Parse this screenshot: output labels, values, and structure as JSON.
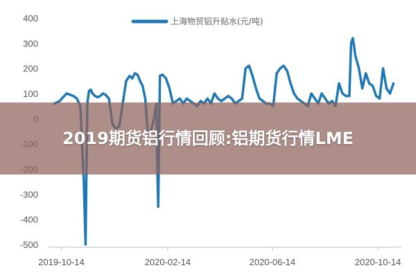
{
  "banner": {
    "title": "2019期货铝行情回顾:铝期货行情LME"
  },
  "colors": {
    "series": "#1f77b4",
    "axis": "#bfbfbf",
    "banner_bg": "#8e635c"
  },
  "chart_data": {
    "type": "line",
    "title": "",
    "xlabel": "",
    "ylabel": "",
    "ylim": [
      -500,
      400
    ],
    "yticks": [
      400,
      300,
      200,
      100,
      0,
      -100,
      -200,
      -300,
      -400,
      -500
    ],
    "ytick_labels": [
      "400",
      "300",
      "200",
      "100",
      "0",
      "-100",
      "-200",
      "-300",
      "-400",
      "-500"
    ],
    "xlim": [
      "2019-10-04",
      "2020-11-07"
    ],
    "xticks": [
      "2019-10-14",
      "2020-02-14",
      "2020-06-14",
      "2020-10-14"
    ],
    "xtick_labels": [
      "2019-10-14",
      "2020-02-14",
      "2020-06-14",
      "2020-10-14"
    ],
    "legend": {
      "label": "上海物贸铝升贴水(元/吨)",
      "position": "top"
    },
    "grid": false,
    "series": [
      {
        "name": "上海物贸铝升贴水(元/吨)",
        "x": [
          "2019-10-06",
          "2019-10-12",
          "2019-10-16",
          "2019-10-20",
          "2019-10-24",
          "2019-10-28",
          "2019-11-01",
          "2019-11-05",
          "2019-11-09",
          "2019-11-11",
          "2019-11-13",
          "2019-11-15",
          "2019-11-17",
          "2019-11-19",
          "2019-11-22",
          "2019-11-25",
          "2019-11-28",
          "2019-12-01",
          "2019-12-04",
          "2019-12-08",
          "2019-12-12",
          "2019-12-16",
          "2019-12-20",
          "2019-12-24",
          "2019-12-28",
          "2020-01-01",
          "2020-01-04",
          "2020-01-07",
          "2020-01-10",
          "2020-01-13",
          "2020-01-16",
          "2020-01-19",
          "2020-01-22",
          "2020-01-25",
          "2020-01-28",
          "2020-02-01",
          "2020-02-02",
          "2020-02-03",
          "2020-02-05",
          "2020-02-08",
          "2020-02-12",
          "2020-02-16",
          "2020-02-20",
          "2020-02-24",
          "2020-02-28",
          "2020-03-03",
          "2020-03-07",
          "2020-03-11",
          "2020-03-15",
          "2020-03-19",
          "2020-03-23",
          "2020-03-27",
          "2020-03-31",
          "2020-04-04",
          "2020-04-08",
          "2020-04-12",
          "2020-04-16",
          "2020-04-20",
          "2020-04-24",
          "2020-04-28",
          "2020-05-02",
          "2020-05-06",
          "2020-05-10",
          "2020-05-14",
          "2020-05-18",
          "2020-05-22",
          "2020-05-26",
          "2020-05-30",
          "2020-06-03",
          "2020-06-07",
          "2020-06-11",
          "2020-06-15",
          "2020-06-19",
          "2020-06-23",
          "2020-06-27",
          "2020-07-01",
          "2020-07-05",
          "2020-07-09",
          "2020-07-13",
          "2020-07-17",
          "2020-07-21",
          "2020-07-25",
          "2020-07-29",
          "2020-08-02",
          "2020-08-06",
          "2020-08-10",
          "2020-08-14",
          "2020-08-18",
          "2020-08-22",
          "2020-08-26",
          "2020-08-30",
          "2020-09-03",
          "2020-09-07",
          "2020-09-11",
          "2020-09-13",
          "2020-09-15",
          "2020-09-18",
          "2020-09-22",
          "2020-09-26",
          "2020-09-30",
          "2020-10-04",
          "2020-10-08",
          "2020-10-12",
          "2020-10-16",
          "2020-10-20",
          "2020-10-24",
          "2020-10-28",
          "2020-11-01"
        ],
        "values": [
          60,
          70,
          85,
          100,
          95,
          90,
          80,
          50,
          -250,
          -500,
          60,
          110,
          115,
          100,
          90,
          85,
          90,
          100,
          95,
          80,
          -20,
          -40,
          -30,
          60,
          150,
          170,
          160,
          180,
          175,
          150,
          130,
          80,
          -60,
          -50,
          -20,
          60,
          -200,
          -350,
          170,
          175,
          160,
          120,
          60,
          70,
          80,
          60,
          80,
          70,
          60,
          50,
          70,
          60,
          80,
          60,
          100,
          80,
          70,
          80,
          90,
          80,
          60,
          70,
          80,
          200,
          210,
          170,
          120,
          80,
          70,
          60,
          60,
          50,
          180,
          200,
          210,
          190,
          140,
          100,
          80,
          70,
          60,
          50,
          100,
          80,
          60,
          100,
          80,
          60,
          70,
          50,
          140,
          100,
          90,
          90,
          300,
          320,
          250,
          200,
          120,
          180,
          140,
          130,
          90,
          80,
          200,
          120,
          100,
          140
        ]
      }
    ]
  }
}
